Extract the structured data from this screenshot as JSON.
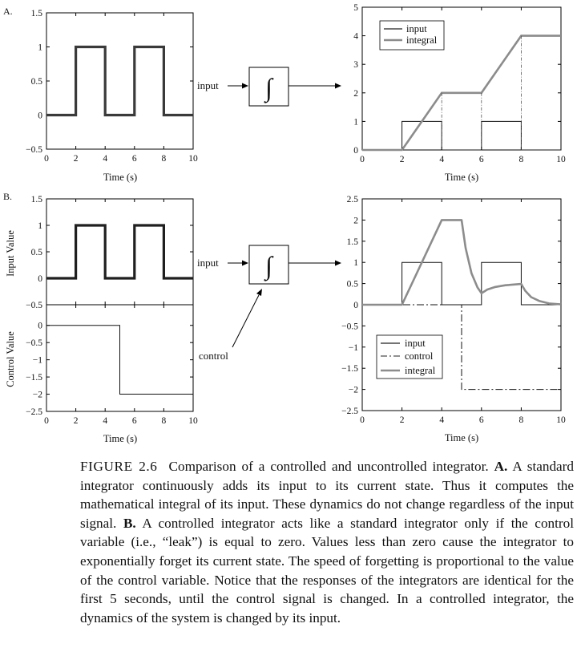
{
  "panels": {
    "a_label": "A.",
    "b_label": "B."
  },
  "xlabel": "Time (s)",
  "block": {
    "input_label": "input",
    "control_label": "control",
    "symbol": "∫"
  },
  "axes": {
    "a_input": {
      "xticks": [
        0,
        2,
        4,
        6,
        8,
        10
      ],
      "yticks": [
        "1.5",
        "1",
        "0.5",
        "0",
        "−0.5"
      ]
    },
    "a_output": {
      "xticks": [
        0,
        2,
        4,
        6,
        8,
        10
      ],
      "yticks": [
        "5",
        "4",
        "3",
        "2",
        "1",
        "0"
      ]
    },
    "b_input": {
      "ylabel": "Input Value",
      "yticks": [
        "1.5",
        "1",
        "0.5",
        "0",
        "−0.5"
      ]
    },
    "b_control": {
      "ylabel": "Control Value",
      "xticks": [
        0,
        2,
        4,
        6,
        8,
        10
      ],
      "yticks": [
        "0",
        "−0.5",
        "−1",
        "−1.5",
        "−2",
        "−2.5"
      ]
    },
    "b_output": {
      "xticks": [
        0,
        2,
        4,
        6,
        8,
        10
      ],
      "yticks": [
        "2.5",
        "2",
        "1.5",
        "1",
        "0.5",
        "0",
        "−0.5",
        "−1",
        "−1.5",
        "−2",
        "−2.5"
      ]
    }
  },
  "legend_a": [
    "input",
    "integral"
  ],
  "legend_b": [
    "input",
    "control",
    "integral"
  ],
  "colors": {
    "signal": "#333333",
    "integral": "#8c8c8c",
    "axis": "#000000"
  },
  "chart_data": [
    {
      "type": "line",
      "panel": "A-input",
      "x": [
        0,
        2,
        2,
        4,
        4,
        6,
        6,
        8,
        8,
        10
      ],
      "y": [
        0,
        0,
        1,
        1,
        0,
        0,
        1,
        1,
        0,
        0
      ],
      "xlim": [
        0,
        10
      ],
      "ylim": [
        -0.5,
        1.5
      ]
    },
    {
      "type": "line",
      "panel": "A-output",
      "series": [
        {
          "name": "input",
          "x": [
            0,
            2,
            2,
            4,
            4,
            6,
            6,
            8,
            8,
            10
          ],
          "y": [
            0,
            0,
            1,
            1,
            0,
            0,
            1,
            1,
            0,
            0
          ]
        },
        {
          "name": "integral",
          "x": [
            0,
            2,
            4,
            6,
            8,
            10
          ],
          "y": [
            0,
            0,
            2,
            2,
            4,
            4
          ]
        }
      ],
      "xlim": [
        0,
        10
      ],
      "ylim": [
        0,
        5
      ]
    },
    {
      "type": "line",
      "panel": "B-input",
      "x": [
        0,
        2,
        2,
        4,
        4,
        6,
        6,
        8,
        8,
        10
      ],
      "y": [
        0,
        0,
        1,
        1,
        0,
        0,
        1,
        1,
        0,
        0
      ],
      "xlim": [
        0,
        10
      ],
      "ylim": [
        -0.5,
        1.5
      ]
    },
    {
      "type": "line",
      "panel": "B-control",
      "x": [
        0,
        5,
        5,
        10
      ],
      "y": [
        0,
        0,
        -2,
        -2
      ],
      "xlim": [
        0,
        10
      ],
      "ylim": [
        -2.5,
        0.6
      ]
    },
    {
      "type": "line",
      "panel": "B-output",
      "series": [
        {
          "name": "input",
          "x": [
            0,
            2,
            2,
            4,
            4,
            6,
            6,
            8,
            8,
            10
          ],
          "y": [
            0,
            0,
            1,
            1,
            0,
            0,
            1,
            1,
            0,
            0
          ]
        },
        {
          "name": "control",
          "x": [
            0,
            5,
            5,
            10
          ],
          "y": [
            0,
            0,
            -2,
            -2
          ]
        },
        {
          "name": "integral",
          "x": [
            0,
            2,
            4,
            5,
            5.2,
            5.5,
            5.8,
            6,
            6.3,
            6.7,
            7.2,
            8,
            8.2,
            8.5,
            8.9,
            9.4,
            10
          ],
          "y": [
            0,
            0,
            2,
            2,
            1.34,
            0.74,
            0.41,
            0.27,
            0.36,
            0.42,
            0.46,
            0.49,
            0.33,
            0.18,
            0.09,
            0.03,
            0.01
          ]
        }
      ],
      "xlim": [
        0,
        10
      ],
      "ylim": [
        -2.5,
        2.5
      ]
    }
  ],
  "caption": {
    "label": "FIGURE 2.6",
    "text1": "Comparison of a controlled and uncontrolled integrator. ",
    "boldA": "A.",
    "text2": " A standard integrator continuously adds its input to its current state. Thus it computes the mathematical integral of its input. These dynamics do not change regardless of the input signal. ",
    "boldB": "B.",
    "text3": " A controlled integrator acts like a standard integrator only if the control variable (i.e., “leak”) is equal to zero. Values less than zero cause the integrator to exponentially forget its current state. The speed of forgetting is proportional to the value of the control variable. Notice that the responses of the integrators are identical for the first 5 seconds, until the control signal is changed. In a controlled integrator, the dynamics of the system is changed by its input."
  }
}
